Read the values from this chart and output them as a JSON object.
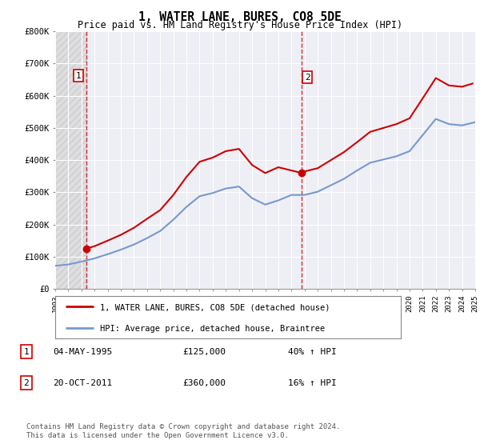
{
  "title": "1, WATER LANE, BURES, CO8 5DE",
  "subtitle": "Price paid vs. HM Land Registry's House Price Index (HPI)",
  "legend_line1": "1, WATER LANE, BURES, CO8 5DE (detached house)",
  "legend_line2": "HPI: Average price, detached house, Braintree",
  "table": [
    {
      "num": "1",
      "date": "04-MAY-1995",
      "price": "£125,000",
      "hpi": "40% ↑ HPI"
    },
    {
      "num": "2",
      "date": "20-OCT-2011",
      "price": "£360,000",
      "hpi": "16% ↑ HPI"
    }
  ],
  "footnote": "Contains HM Land Registry data © Crown copyright and database right 2024.\nThis data is licensed under the Open Government Licence v3.0.",
  "ylim": [
    0,
    800000
  ],
  "yticks": [
    0,
    100000,
    200000,
    300000,
    400000,
    500000,
    600000,
    700000,
    800000
  ],
  "ytick_labels": [
    "£0",
    "£100K",
    "£200K",
    "£300K",
    "£400K",
    "£500K",
    "£600K",
    "£700K",
    "£800K"
  ],
  "hpi_color": "#7799cc",
  "price_color": "#cc0000",
  "marker_color": "#cc0000",
  "dashed_color": "#cc0000",
  "background_color": "#ffffff",
  "plot_bg": "#eeeef5",
  "grid_color": "#ffffff",
  "sale1_year": 1995.35,
  "sale1_price": 125000,
  "sale2_year": 2011.8,
  "sale2_price": 360000,
  "xmin": 1993,
  "xmax": 2025,
  "hpi_years": [
    1993,
    1994,
    1995,
    1996,
    1997,
    1998,
    1999,
    2000,
    2001,
    2002,
    2003,
    2004,
    2005,
    2006,
    2007,
    2008,
    2009,
    2010,
    2011,
    2012,
    2013,
    2014,
    2015,
    2016,
    2017,
    2018,
    2019,
    2020,
    2021,
    2022,
    2023,
    2024,
    2025
  ],
  "hpi_values": [
    72000,
    76000,
    85000,
    95000,
    108000,
    122000,
    138000,
    158000,
    180000,
    215000,
    255000,
    288000,
    298000,
    312000,
    318000,
    282000,
    262000,
    275000,
    292000,
    292000,
    302000,
    322000,
    342000,
    368000,
    392000,
    402000,
    412000,
    428000,
    478000,
    528000,
    512000,
    508000,
    518000
  ],
  "price_years": [
    1995.35,
    1996,
    1997,
    1998,
    1999,
    2000,
    2001,
    2002,
    2003,
    2004,
    2005,
    2006,
    2007,
    2008,
    2009,
    2010,
    2011.8,
    2012,
    2013,
    2014,
    2015,
    2016,
    2017,
    2018,
    2019,
    2020,
    2021,
    2022,
    2023,
    2024,
    2024.8
  ],
  "price_values": [
    125000,
    133000,
    150000,
    168000,
    190000,
    218000,
    245000,
    292000,
    348000,
    395000,
    408000,
    428000,
    435000,
    385000,
    360000,
    378000,
    360000,
    365000,
    375000,
    400000,
    425000,
    456000,
    488000,
    500000,
    512000,
    530000,
    592000,
    655000,
    632000,
    628000,
    638000
  ]
}
